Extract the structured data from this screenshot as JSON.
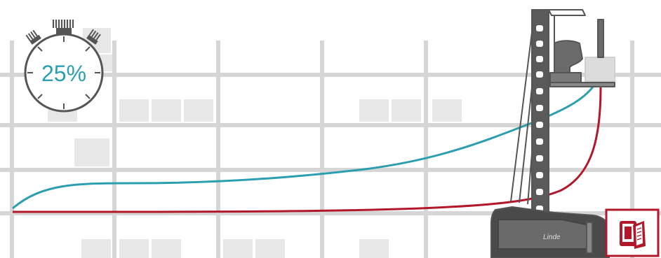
{
  "timer": {
    "percent_label": "25%",
    "icon": "stopwatch-icon"
  },
  "brand": {
    "truck_logo": "Linde"
  },
  "colors": {
    "shelf": "#d6d6d6",
    "box": "#e6e6e6",
    "teal_curve": "#2b9fb0",
    "red_curve": "#b3182a",
    "truck_outline": "#555555",
    "badge": "#b3182a"
  },
  "badge": {
    "icon": "tablet-manual-icon"
  }
}
